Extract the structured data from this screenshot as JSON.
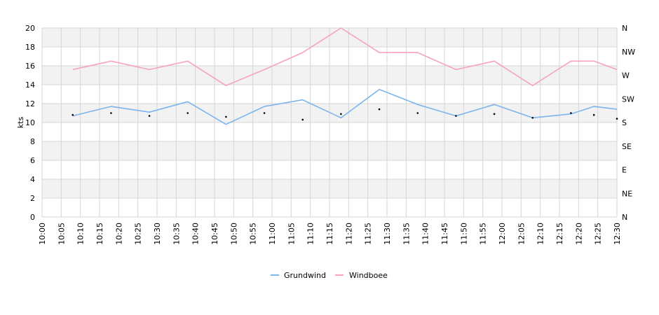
{
  "chart_data": {
    "type": "line",
    "title": "",
    "xlabel": "",
    "ylabel": "kts",
    "ylim": [
      0,
      20
    ],
    "y_ticks": [
      "0",
      "2",
      "4",
      "6",
      "8",
      "10",
      "12",
      "14",
      "16",
      "18",
      "20"
    ],
    "right_axis": {
      "labels": [
        "N",
        "NE",
        "E",
        "SE",
        "S",
        "SW",
        "W",
        "NW",
        "N"
      ]
    },
    "x_ticks": [
      "10:00",
      "10:05",
      "10:10",
      "10:15",
      "10:20",
      "10:25",
      "10:30",
      "10:35",
      "10:40",
      "10:45",
      "10:50",
      "10:55",
      "11:00",
      "11:05",
      "11:10",
      "11:15",
      "11:20",
      "11:25",
      "11:30",
      "11:35",
      "11:40",
      "11:45",
      "11:50",
      "11:55",
      "12:00",
      "12:05",
      "12:10",
      "12:15",
      "12:20",
      "12:25",
      "12:30"
    ],
    "grid": true,
    "legend_position": "bottom",
    "colors": {
      "grundwind": "#7cb5ec",
      "windboee": "#f7a1c4",
      "direction": "#000000",
      "band": "#f2f2f2",
      "grid": "#d6d6d6"
    },
    "series": [
      {
        "name": "Grundwind",
        "x": [
          "10:08",
          "10:18",
          "10:28",
          "10:38",
          "10:48",
          "10:58",
          "11:08",
          "11:18",
          "11:28",
          "11:38",
          "11:48",
          "11:58",
          "12:08",
          "12:18",
          "12:24",
          "12:30"
        ],
        "values": [
          10.7,
          11.7,
          11.1,
          12.2,
          9.8,
          11.7,
          12.4,
          10.5,
          13.5,
          11.9,
          10.7,
          11.9,
          10.5,
          10.9,
          11.7,
          11.4
        ]
      },
      {
        "name": "Windboee",
        "x": [
          "10:08",
          "10:18",
          "10:28",
          "10:38",
          "10:48",
          "10:58",
          "11:08",
          "11:18",
          "11:28",
          "11:38",
          "11:48",
          "11:58",
          "12:08",
          "12:18",
          "12:24",
          "12:30"
        ],
        "values": [
          15.6,
          16.5,
          15.6,
          16.5,
          13.9,
          15.6,
          17.4,
          20.0,
          17.4,
          17.4,
          15.6,
          16.5,
          13.9,
          16.5,
          16.5,
          15.6
        ]
      },
      {
        "name": "",
        "x": [
          "10:08",
          "10:18",
          "10:28",
          "10:38",
          "10:48",
          "10:58",
          "11:08",
          "11:18",
          "11:28",
          "11:38",
          "11:48",
          "11:58",
          "12:08",
          "12:18",
          "12:24",
          "12:30"
        ],
        "values": [
          10.8,
          11.0,
          10.7,
          11.0,
          10.6,
          11.0,
          10.3,
          10.9,
          11.4,
          11.0,
          10.7,
          10.9,
          10.5,
          11.0,
          10.8,
          10.4
        ]
      }
    ]
  }
}
